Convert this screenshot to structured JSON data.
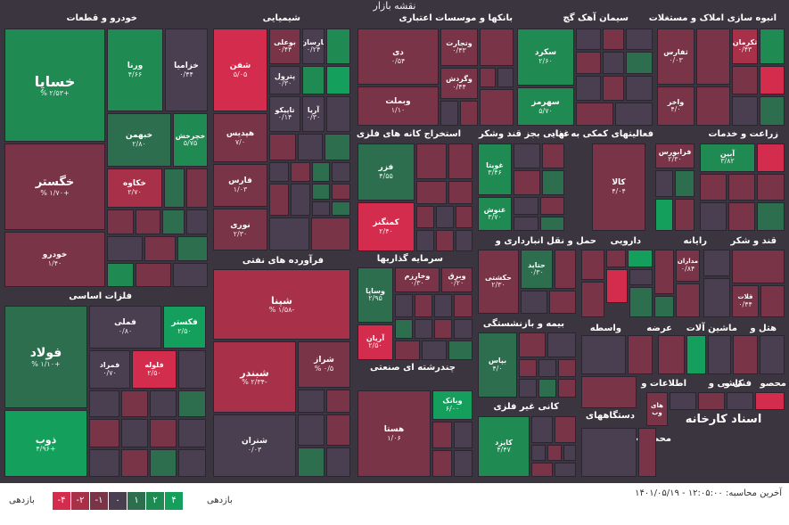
{
  "title": "نقشه بازار",
  "sectors": {
    "auto": "خودرو و قطعات",
    "chem": "شیمیایی",
    "bank": "بانکها و موسسات اعتباری",
    "cement": "سیمان آهک گچ",
    "realestate": "انبوه سازی املاک و مستغلات",
    "metal": "فلزات اساسی",
    "mining": "استخراج کانه های فلزی",
    "sugar": "قند و شکر",
    "food": "غذایی بجز قند وشکر",
    "aux": "فعالیتهای کمکی به نهاد",
    "agri": "زراعت و خدمات",
    "oil": "فرآورده های نفتی",
    "invest": "سرمایه گذاریها",
    "transport": "حمل و نقل انبارداری و",
    "pharma": "دارویی",
    "computer": "رایانه",
    "sugar2": "قند و شکر",
    "insurance": "بیمه و بازنشستگی",
    "multi": "چندرشته ای صنعتی",
    "nonmetal": "کانی غیر فلزی",
    "broker": "واسطه",
    "supply": "عرضه",
    "machinery": "ماشین آلات",
    "hotel": "هتل و",
    "info": "اطلاعات و",
    "tile": "کاشی و",
    "tech": "فنی و",
    "product": "محصو",
    "devices": "دستگاههای",
    "products": "محصولات"
  },
  "tiles": {
    "khesapa": {
      "name": "خساپا",
      "pct": "% ۲/۵۳+"
    },
    "varena": {
      "name": "ورنا",
      "pct": "۴/۶۶"
    },
    "khazamia": {
      "name": "خزامیا",
      "pct": "۰/۴۴"
    },
    "khegostar": {
      "name": "خگستر",
      "pct": "% ۱/۷۰+"
    },
    "khebahman": {
      "name": "خبهمن",
      "pct": "۲/۸۰"
    },
    "khecharkhesh": {
      "name": "خچرخش",
      "pct": "۵/۷۵"
    },
    "khakave": {
      "name": "خکاوه",
      "pct": "۲/۷۰"
    },
    "khodro": {
      "name": "خودرو",
      "pct": "۱/۴۰"
    },
    "shafan": {
      "name": "شفن",
      "pct": "۵/۰۵"
    },
    "buali": {
      "name": "بوعلی",
      "pct": "۰/۴۴"
    },
    "parsan": {
      "name": "پارسان",
      "pct": "۰/۲۴"
    },
    "petrol": {
      "name": "پترول",
      "pct": "۰/۳۰"
    },
    "tapiko": {
      "name": "تاپیکو",
      "pct": "۰/۱۴"
    },
    "arya": {
      "name": "آریا",
      "pct": "۰/۳۰"
    },
    "hepadis": {
      "name": "هپدیس",
      "pct": "۷/۰"
    },
    "fares": {
      "name": "فارس",
      "pct": "۱/۰۳"
    },
    "nouri": {
      "name": "نوری",
      "pct": "۲/۳۰"
    },
    "dey": {
      "name": "دی",
      "pct": "۰/۵۴"
    },
    "vetejarat": {
      "name": "وتجارت",
      "pct": "۰/۴۳"
    },
    "vegardesh": {
      "name": "وگردش",
      "pct": "۰/۴۴"
    },
    "vebemellat": {
      "name": "وبملت",
      "pct": "۱/۱۰"
    },
    "sekord": {
      "name": "سکرد",
      "pct": "۲/۶۰"
    },
    "sehormoz": {
      "name": "سهرمز",
      "pct": "۵/۷۰"
    },
    "tharas": {
      "name": "ثفارس",
      "pct": "۰/۰۳"
    },
    "kerman": {
      "name": "ثکرمان",
      "pct": "۰/۴۳"
    },
    "vaakher": {
      "name": "واخر",
      "pct": "۴/۰"
    },
    "foulad": {
      "name": "فولاد",
      "pct": "% ۱/۱۰+"
    },
    "fameli": {
      "name": "فملی",
      "pct": "۰/۸۰"
    },
    "fekstar": {
      "name": "فکستر",
      "pct": "۲/۵۰"
    },
    "famraad": {
      "name": "فمراد",
      "pct": "۰/۷۰"
    },
    "falouleh": {
      "name": "فلوله",
      "pct": "۲/۵۰"
    },
    "zoob": {
      "name": "ذوب",
      "pct": "۴/۹۶+"
    },
    "fezar": {
      "name": "فزر",
      "pct": "۴/۵۵"
    },
    "kamangez": {
      "name": "کمنگنز",
      "pct": "۲/۴۰"
    },
    "ghoveita": {
      "name": "غویتا",
      "pct": "۳/۴۶"
    },
    "ghenoosh": {
      "name": "غنوش",
      "pct": "۳/۷۰"
    },
    "kala": {
      "name": "کالا",
      "pct": "۴/۰۴"
    },
    "faraboors": {
      "name": "فرابورس",
      "pct": "۲/۳۰"
    },
    "aabin": {
      "name": "آبین",
      "pct": "۳/۸۲"
    },
    "shepna": {
      "name": "شپنا",
      "pct": "% ۱/۵۸-"
    },
    "shabandar": {
      "name": "شبندر",
      "pct": "% ۲/۳۴-"
    },
    "shiraz": {
      "name": "شراز",
      "pct": "% ۰/۵"
    },
    "shetran": {
      "name": "شتران",
      "pct": "۰/۰۳"
    },
    "vesapa": {
      "name": "وساپا",
      "pct": "۲/۹۵"
    },
    "kharazm": {
      "name": "وخارزم",
      "pct": "۰/۳۰"
    },
    "vebarg": {
      "name": "وبرق",
      "pct": "۰/۲۰"
    },
    "arian": {
      "name": "آریان",
      "pct": "۲/۵۰"
    },
    "haftid": {
      "name": "حتاید",
      "pct": "۰/۳۰"
    },
    "hakeshti": {
      "name": "حکشتی",
      "pct": "۲/۳۰"
    },
    "modaran": {
      "name": "مداران",
      "pct": "۰/۸۴"
    },
    "ghelaat": {
      "name": "قلات",
      "pct": "۰/۴۴"
    },
    "bepas": {
      "name": "بپاس",
      "pct": "۴/۰"
    },
    "hesta": {
      "name": "هستا",
      "pct": "۱/۰۶"
    },
    "vebank": {
      "name": "وبانک",
      "pct": "۶/۰۰"
    },
    "kayzed": {
      "name": "کایزد",
      "pct": "۴/۴۷"
    },
    "hay_web": {
      "name": "های وب",
      "pct": ""
    }
  },
  "legend": {
    "left_label": "بازدهی",
    "right_label": "بازدهی",
    "items": [
      "-۴",
      "-۲",
      "-۱",
      "۰",
      "۱",
      "۲",
      "۴"
    ],
    "colors": [
      "#d42c4c",
      "#a83048",
      "#7a3448",
      "#4a3f50",
      "#2c6e4e",
      "#1f8a52",
      "#14a05c"
    ]
  },
  "update_text": "آخرین محاسبه: ۱۲:۰۵:۰۰ - ۱۴۰۱/۰۵/۱۹",
  "watermark": "اسناد کارخانه"
}
